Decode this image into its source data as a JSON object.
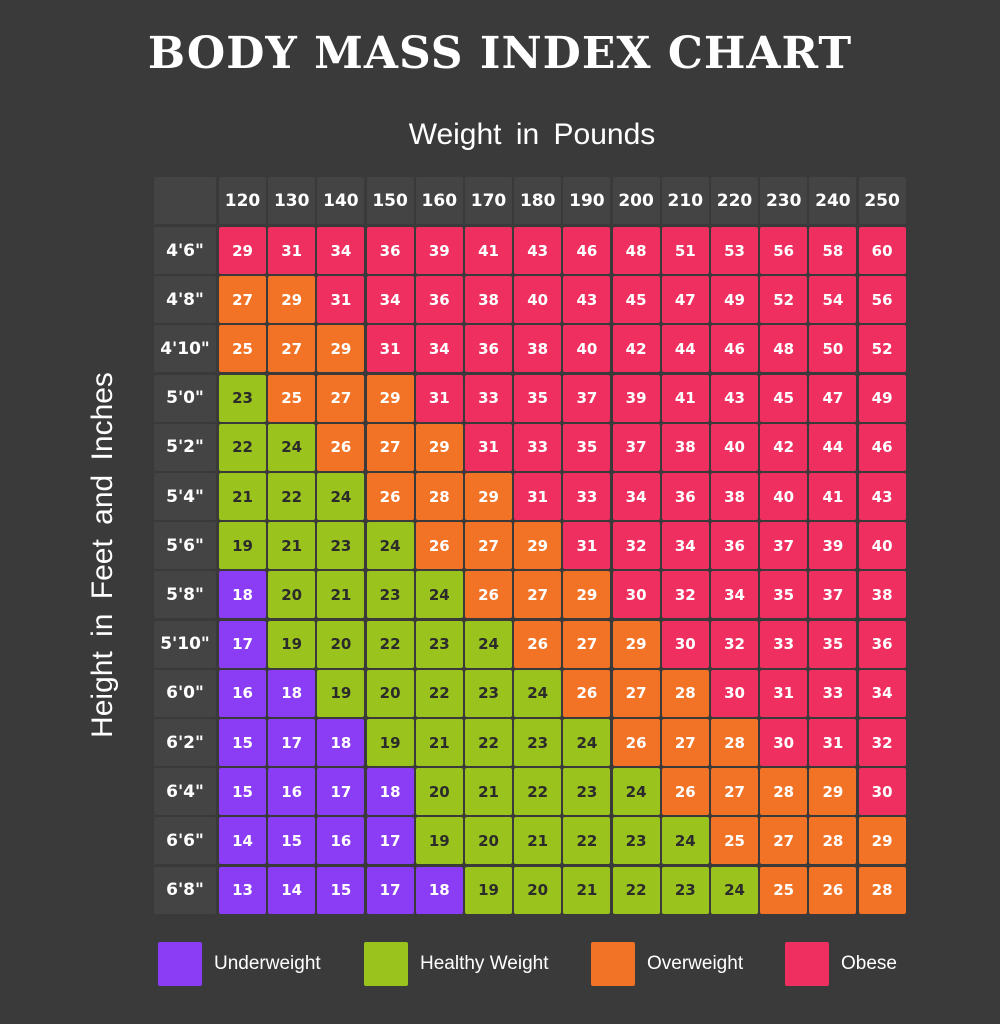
{
  "chart_data": {
    "type": "table",
    "title": "BODY MASS INDEX CHART",
    "xlabel": "Weight in Pounds",
    "ylabel": "Height in Feet and Inches",
    "weights": [
      "120",
      "130",
      "140",
      "150",
      "160",
      "170",
      "180",
      "190",
      "200",
      "210",
      "220",
      "230",
      "240",
      "250"
    ],
    "heights": [
      "4'6\"",
      "4'8\"",
      "4'10\"",
      "5'0\"",
      "5'2\"",
      "5'4\"",
      "5'6\"",
      "5'8\"",
      "5'10\"",
      "6'0\"",
      "6'2\"",
      "6'4\"",
      "6'6\"",
      "6'8\""
    ],
    "values": [
      [
        29,
        31,
        34,
        36,
        39,
        41,
        43,
        46,
        48,
        51,
        53,
        56,
        58,
        60
      ],
      [
        27,
        29,
        31,
        34,
        36,
        38,
        40,
        43,
        45,
        47,
        49,
        52,
        54,
        56
      ],
      [
        25,
        27,
        29,
        31,
        34,
        36,
        38,
        40,
        42,
        44,
        46,
        48,
        50,
        52
      ],
      [
        23,
        25,
        27,
        29,
        31,
        33,
        35,
        37,
        39,
        41,
        43,
        45,
        47,
        49
      ],
      [
        22,
        24,
        26,
        27,
        29,
        31,
        33,
        35,
        37,
        38,
        40,
        42,
        44,
        46
      ],
      [
        21,
        22,
        24,
        26,
        28,
        29,
        31,
        33,
        34,
        36,
        38,
        40,
        41,
        43
      ],
      [
        19,
        21,
        23,
        24,
        26,
        27,
        29,
        31,
        32,
        34,
        36,
        37,
        39,
        40
      ],
      [
        18,
        20,
        21,
        23,
        24,
        26,
        27,
        29,
        30,
        32,
        34,
        35,
        37,
        38
      ],
      [
        17,
        19,
        20,
        22,
        23,
        24,
        26,
        27,
        29,
        30,
        32,
        33,
        35,
        36
      ],
      [
        16,
        18,
        19,
        20,
        22,
        23,
        24,
        26,
        27,
        28,
        30,
        31,
        33,
        34
      ],
      [
        15,
        17,
        18,
        19,
        21,
        22,
        23,
        24,
        26,
        27,
        28,
        30,
        31,
        32
      ],
      [
        15,
        16,
        17,
        18,
        20,
        21,
        22,
        23,
        24,
        26,
        27,
        28,
        29,
        30
      ],
      [
        14,
        15,
        16,
        17,
        19,
        20,
        21,
        22,
        23,
        24,
        25,
        27,
        28,
        29
      ],
      [
        13,
        14,
        15,
        17,
        18,
        19,
        20,
        21,
        22,
        23,
        24,
        25,
        26,
        28
      ]
    ],
    "categories": [
      [
        3,
        3,
        3,
        3,
        3,
        3,
        3,
        3,
        3,
        3,
        3,
        3,
        3,
        3
      ],
      [
        2,
        2,
        3,
        3,
        3,
        3,
        3,
        3,
        3,
        3,
        3,
        3,
        3,
        3
      ],
      [
        2,
        2,
        2,
        3,
        3,
        3,
        3,
        3,
        3,
        3,
        3,
        3,
        3,
        3
      ],
      [
        1,
        2,
        2,
        2,
        3,
        3,
        3,
        3,
        3,
        3,
        3,
        3,
        3,
        3
      ],
      [
        1,
        1,
        2,
        2,
        2,
        3,
        3,
        3,
        3,
        3,
        3,
        3,
        3,
        3
      ],
      [
        1,
        1,
        1,
        2,
        2,
        2,
        3,
        3,
        3,
        3,
        3,
        3,
        3,
        3
      ],
      [
        1,
        1,
        1,
        1,
        2,
        2,
        2,
        3,
        3,
        3,
        3,
        3,
        3,
        3
      ],
      [
        0,
        1,
        1,
        1,
        1,
        2,
        2,
        2,
        3,
        3,
        3,
        3,
        3,
        3
      ],
      [
        0,
        1,
        1,
        1,
        1,
        1,
        2,
        2,
        2,
        3,
        3,
        3,
        3,
        3
      ],
      [
        0,
        0,
        1,
        1,
        1,
        1,
        1,
        2,
        2,
        2,
        3,
        3,
        3,
        3
      ],
      [
        0,
        0,
        0,
        1,
        1,
        1,
        1,
        1,
        2,
        2,
        2,
        3,
        3,
        3
      ],
      [
        0,
        0,
        0,
        0,
        1,
        1,
        1,
        1,
        1,
        2,
        2,
        2,
        2,
        3
      ],
      [
        0,
        0,
        0,
        0,
        1,
        1,
        1,
        1,
        1,
        1,
        2,
        2,
        2,
        2
      ],
      [
        0,
        0,
        0,
        0,
        0,
        1,
        1,
        1,
        1,
        1,
        1,
        2,
        2,
        2
      ]
    ],
    "legend": [
      {
        "label": "Underweight",
        "color": "#8b3cf5"
      },
      {
        "label": "Healthy Weight",
        "color": "#9bc31d"
      },
      {
        "label": "Overweight",
        "color": "#f27326"
      },
      {
        "label": "Obese",
        "color": "#ef2f5f"
      }
    ],
    "legend_placement": "bottom"
  }
}
